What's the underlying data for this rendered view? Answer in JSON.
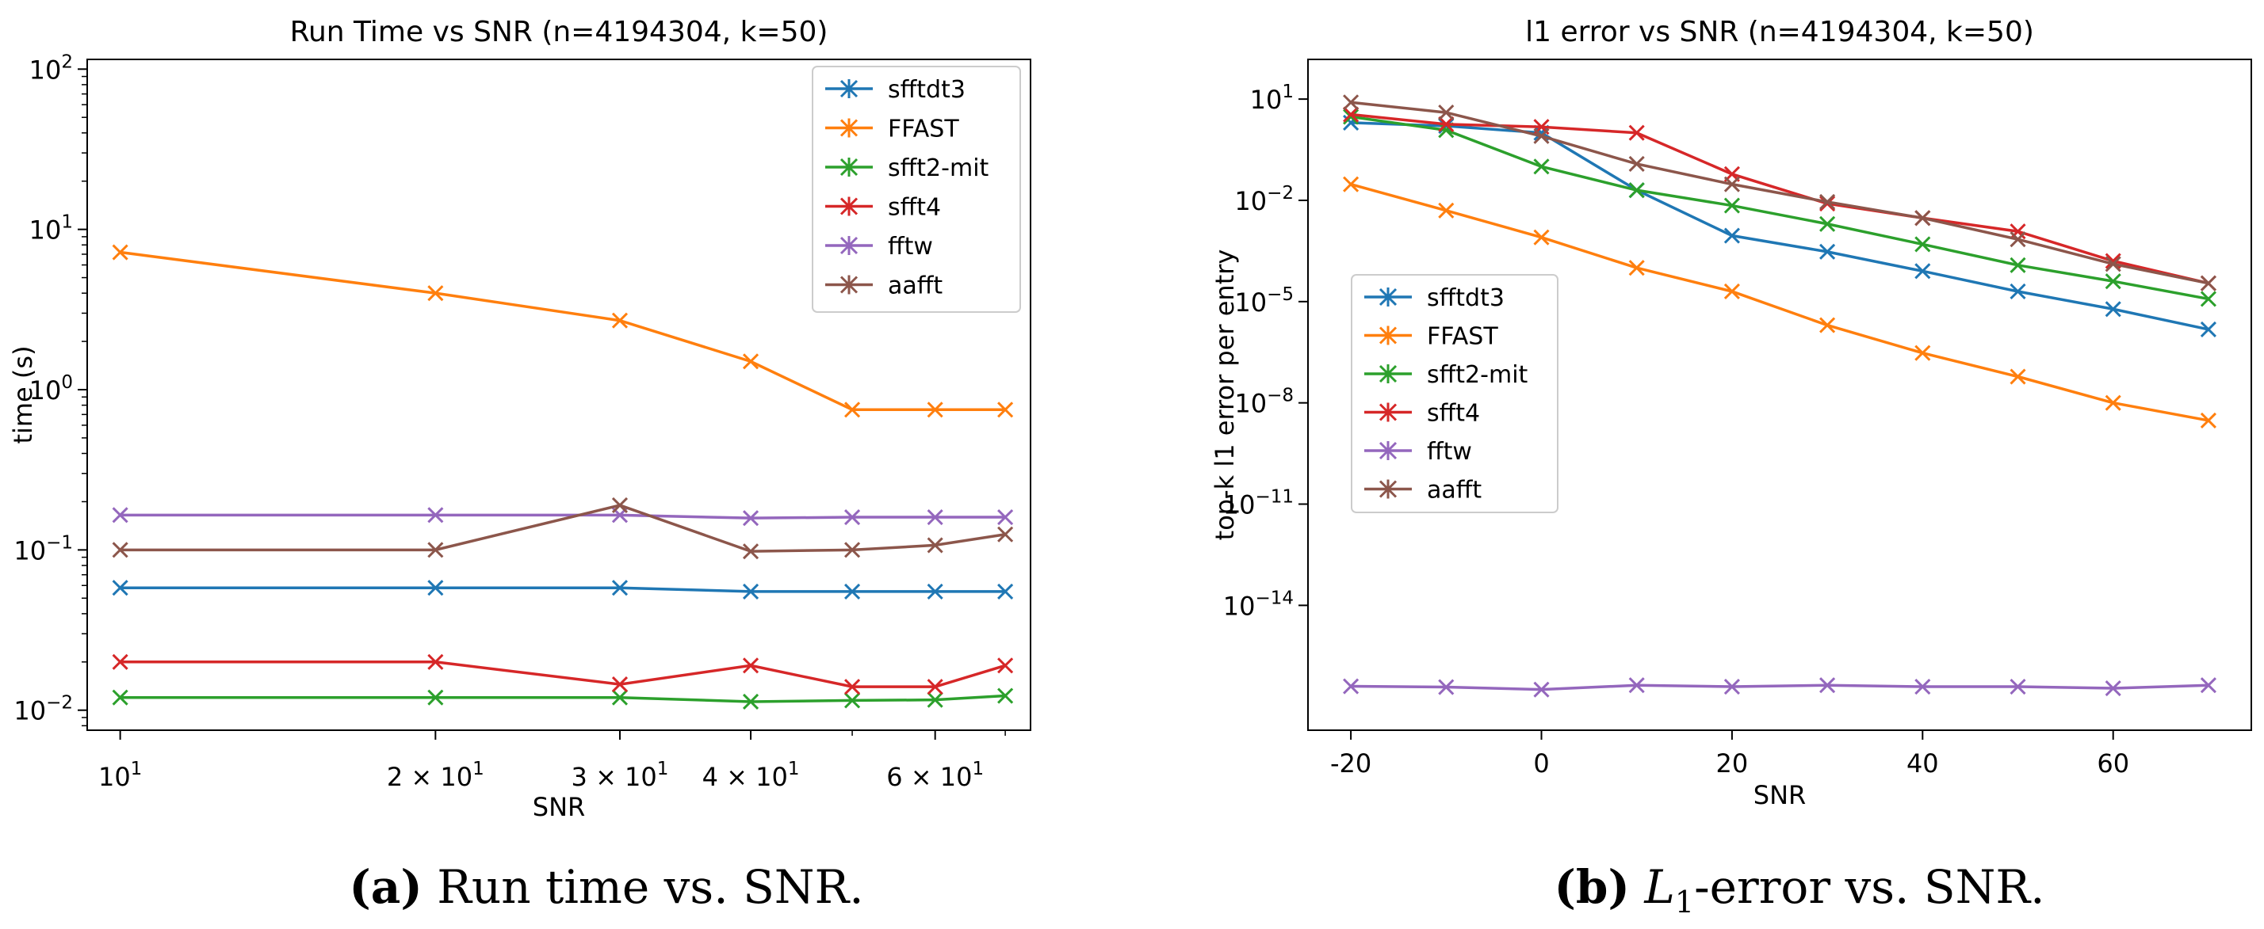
{
  "chart_data": [
    {
      "type": "line",
      "panel": "a",
      "title": "Run Time vs SNR (n=4194304, k=50)",
      "xlabel": "SNR",
      "ylabel": "time (s)",
      "xscale": "log",
      "yscale": "log",
      "xlim": [
        9.3,
        74
      ],
      "ylim": [
        0.0075,
        115
      ],
      "x": [
        10,
        20,
        30,
        40,
        50,
        60,
        70
      ],
      "xticks": [
        {
          "value": 10,
          "base": "10",
          "exp": "1",
          "coef": ""
        },
        {
          "value": 20,
          "base": "10",
          "exp": "1",
          "coef": "2 × "
        },
        {
          "value": 30,
          "base": "10",
          "exp": "1",
          "coef": "3 × "
        },
        {
          "value": 40,
          "base": "10",
          "exp": "1",
          "coef": "4 × "
        },
        {
          "value": 60,
          "base": "10",
          "exp": "1",
          "coef": "6 × "
        }
      ],
      "yticks": [
        {
          "value": 0.01,
          "base": "10",
          "exp": "−2"
        },
        {
          "value": 0.1,
          "base": "10",
          "exp": "−1"
        },
        {
          "value": 1,
          "base": "10",
          "exp": "0"
        },
        {
          "value": 10,
          "base": "10",
          "exp": "1"
        },
        {
          "value": 100,
          "base": "10",
          "exp": "2"
        }
      ],
      "legend_position": "top-right",
      "series": [
        {
          "name": "sfftdt3",
          "color": "#1f77b4",
          "values": [
            0.058,
            0.058,
            0.058,
            0.055,
            0.055,
            0.055,
            0.055
          ]
        },
        {
          "name": "FFAST",
          "color": "#ff7f0e",
          "values": [
            7.2,
            4.0,
            2.7,
            1.5,
            0.75,
            0.75,
            0.75
          ]
        },
        {
          "name": "sfft2-mit",
          "color": "#2ca02c",
          "values": [
            0.012,
            0.012,
            0.012,
            0.0113,
            0.0115,
            0.0116,
            0.0123
          ]
        },
        {
          "name": "sfft4",
          "color": "#d62728",
          "values": [
            0.02,
            0.02,
            0.0145,
            0.019,
            0.014,
            0.014,
            0.019
          ]
        },
        {
          "name": "fftw",
          "color": "#9467bd",
          "values": [
            0.165,
            0.165,
            0.165,
            0.158,
            0.16,
            0.16,
            0.16
          ]
        },
        {
          "name": "aafft",
          "color": "#8c564b",
          "values": [
            0.1,
            0.1,
            0.19,
            0.098,
            0.1,
            0.107,
            0.125
          ]
        }
      ]
    },
    {
      "type": "line",
      "panel": "b",
      "title": "l1 error vs SNR (n=4194304, k=50)",
      "xlabel": "SNR",
      "ylabel": "top-k l1 error per entry",
      "xscale": "linear",
      "yscale": "log",
      "xlim": [
        -24.5,
        74.5
      ],
      "ylim": [
        2e-18,
        150
      ],
      "x": [
        -20,
        -10,
        0,
        10,
        20,
        30,
        40,
        50,
        60,
        70
      ],
      "xticks": [
        {
          "value": -20,
          "label": "-20"
        },
        {
          "value": 0,
          "label": "0"
        },
        {
          "value": 20,
          "label": "20"
        },
        {
          "value": 40,
          "label": "40"
        },
        {
          "value": 60,
          "label": "60"
        }
      ],
      "yticks": [
        {
          "value": 1e-14,
          "base": "10",
          "exp": "−14"
        },
        {
          "value": 1e-11,
          "base": "10",
          "exp": "−11"
        },
        {
          "value": 1e-08,
          "base": "10",
          "exp": "−8"
        },
        {
          "value": 1e-05,
          "base": "10",
          "exp": "−5"
        },
        {
          "value": 0.01,
          "base": "10",
          "exp": "−2"
        },
        {
          "value": 10,
          "base": "10",
          "exp": "1"
        }
      ],
      "legend_position": "center-left",
      "series": [
        {
          "name": "sfftdt3",
          "color": "#1f77b4",
          "values": [
            2.0,
            1.6,
            1.0,
            0.02,
            0.0009,
            0.0003,
            8e-05,
            2e-05,
            6e-06,
            1.5e-06
          ]
        },
        {
          "name": "FFAST",
          "color": "#ff7f0e",
          "values": [
            0.03,
            0.005,
            0.0008,
            0.0001,
            2e-05,
            2e-06,
            3e-07,
            6e-08,
            1e-08,
            3e-09
          ]
        },
        {
          "name": "sfft2-mit",
          "color": "#2ca02c",
          "values": [
            3.0,
            1.2,
            0.1,
            0.02,
            0.007,
            0.002,
            0.0005,
            0.00012,
            4e-05,
            1.2e-05
          ]
        },
        {
          "name": "sfft4",
          "color": "#d62728",
          "values": [
            3.5,
            1.8,
            1.5,
            1.0,
            0.06,
            0.008,
            0.003,
            0.0012,
            0.00016,
            3.5e-05
          ]
        },
        {
          "name": "fftw",
          "color": "#9467bd",
          "values": [
            4e-17,
            3.8e-17,
            3.2e-17,
            4.3e-17,
            3.9e-17,
            4.3e-17,
            3.9e-17,
            3.9e-17,
            3.5e-17,
            4.3e-17
          ]
        },
        {
          "name": "aafft",
          "color": "#8c564b",
          "values": [
            8.0,
            4.0,
            0.8,
            0.12,
            0.03,
            0.009,
            0.003,
            0.0007,
            0.00013,
            3.5e-05
          ]
        }
      ]
    }
  ],
  "captions": [
    {
      "label": "(a)",
      "text": " Run time vs. SNR."
    },
    {
      "label": "(b)",
      "math": "L",
      "sub": "1",
      "text": "-error vs. SNR."
    }
  ]
}
